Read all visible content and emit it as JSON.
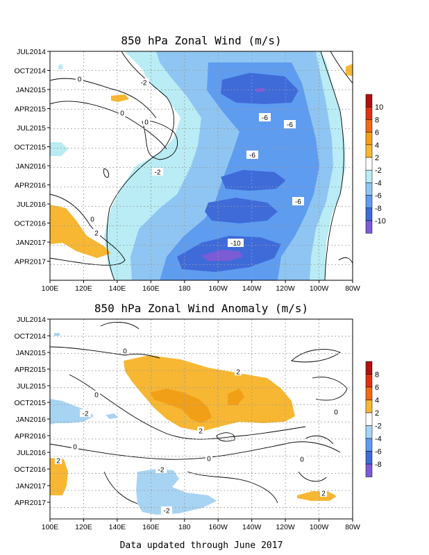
{
  "footer": "Data updated through June 2017",
  "chart_data": [
    {
      "type": "heatmap",
      "title": "850 hPa Zonal Wind (m/s)",
      "xlabel": "",
      "ylabel": "",
      "x_ticks": [
        "100E",
        "120E",
        "140E",
        "160E",
        "180",
        "160W",
        "140W",
        "120W",
        "100W",
        "80W"
      ],
      "y_ticks": [
        "JUL2014",
        "OCT2014",
        "JAN2015",
        "APR2015",
        "JUL2015",
        "OCT2015",
        "JAN2016",
        "APR2016",
        "JUL2016",
        "OCT2016",
        "JAN2017",
        "APR2017"
      ],
      "colorbar_ticks": [
        "10",
        "8",
        "6",
        "4",
        "2",
        "-2",
        "-4",
        "-6",
        "-8",
        "-10"
      ],
      "contour_labels": [
        "0",
        "-2",
        "0",
        "0",
        "-2",
        "-6",
        "-6",
        "-6",
        "-6",
        "0",
        "2",
        "-10"
      ],
      "grid": true,
      "colors": {
        "pos_2_4": "#f7b733",
        "pos_4_6": "#f29f18",
        "neg_2_4": "#b9ecf4",
        "neg_4_6": "#8fc5f2",
        "neg_6_8": "#5e9cf0",
        "neg_8_10": "#3f6bd9",
        "neg_10": "#7b5bd6"
      }
    },
    {
      "type": "heatmap",
      "title": "850 hPa Zonal Wind Anomaly (m/s)",
      "xlabel": "",
      "ylabel": "",
      "x_ticks": [
        "100E",
        "120E",
        "140E",
        "160E",
        "180",
        "160W",
        "140W",
        "120W",
        "100W",
        "80W"
      ],
      "y_ticks": [
        "JUL2014",
        "OCT2014",
        "JAN2015",
        "APR2015",
        "JUL2015",
        "OCT2015",
        "JAN2016",
        "APR2016",
        "JUL2016",
        "OCT2016",
        "JAN2017",
        "APR2017"
      ],
      "colorbar_ticks": [
        "8",
        "6",
        "4",
        "2",
        "-2",
        "-4",
        "-6",
        "-8"
      ],
      "contour_labels": [
        "0",
        "2",
        "0",
        "-2",
        "2",
        "0",
        "0",
        "2",
        "-2",
        "-2",
        "0",
        "2",
        "0"
      ],
      "grid": true,
      "colors": {
        "pos_2_4": "#f7b733",
        "pos_4_6": "#f29f18",
        "neg_2_4": "#a8d4f4"
      }
    }
  ],
  "colorbar_fills": {
    "top": [
      "#b01010",
      "#e03010",
      "#f06a10",
      "#f29f18",
      "#f7b733",
      "#ffffff",
      "#b9ecf4",
      "#8fc5f2",
      "#5e9cf0",
      "#3f6bd9",
      "#7b5bd6"
    ],
    "bottom": [
      "#b01010",
      "#e03010",
      "#f06a10",
      "#f7b733",
      "#ffffff",
      "#a8d4f4",
      "#5e9cf0",
      "#3f6bd9",
      "#7b5bd6"
    ]
  }
}
